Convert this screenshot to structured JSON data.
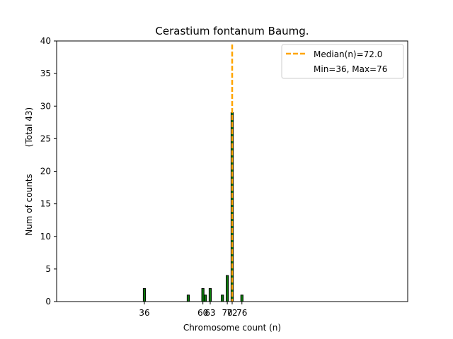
{
  "chart_data": {
    "type": "bar",
    "title": "Cerastium fontanum Baumg.",
    "xlabel": "Chromosome count (n)",
    "ylabel": "Num of counts",
    "ylabel_total": "(Total 43)",
    "xlim": [
      0,
      144
    ],
    "ylim": [
      0,
      40
    ],
    "yticks": [
      0,
      5,
      10,
      15,
      20,
      25,
      30,
      35,
      40
    ],
    "xticks": [
      36,
      60,
      63,
      70,
      72,
      76
    ],
    "bins": [
      {
        "x": 36,
        "count": 2
      },
      {
        "x": 54,
        "count": 1
      },
      {
        "x": 60,
        "count": 2
      },
      {
        "x": 61,
        "count": 1
      },
      {
        "x": 63,
        "count": 2
      },
      {
        "x": 68,
        "count": 1
      },
      {
        "x": 70,
        "count": 4
      },
      {
        "x": 72,
        "count": 29
      },
      {
        "x": 76,
        "count": 1
      }
    ],
    "median": 72.0,
    "legend": {
      "position": "top-right",
      "median_label": "Median(n)=72.0",
      "minmax_label": "Min=36, Max=76"
    },
    "colors": {
      "bar_fill": "#0a7d0a",
      "bar_edge": "#000000",
      "median_line": "#ffa500"
    },
    "grid": false
  }
}
